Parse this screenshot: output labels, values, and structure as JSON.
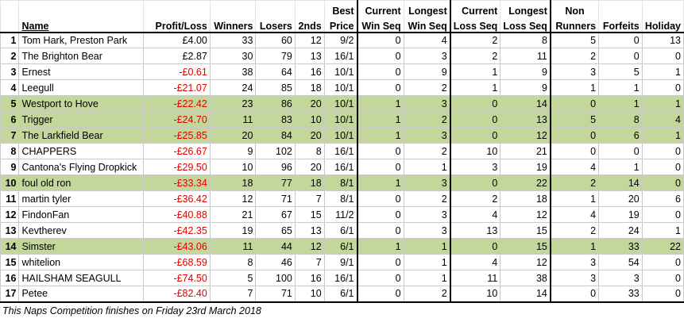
{
  "headers": {
    "name": "Name",
    "profit": "Profit/Loss",
    "winners": "Winners",
    "losers": "Losers",
    "seconds": "2nds",
    "best_price_1": "Best",
    "best_price_2": "Price",
    "cur_win_1": "Current",
    "cur_win_2": "Win Seq",
    "long_win_1": "Longest",
    "long_win_2": "Win Seq",
    "cur_loss_1": "Current",
    "cur_loss_2": "Loss Seq",
    "long_loss_1": "Longest",
    "long_loss_2": "Loss Seq",
    "non_runners_1": "Non",
    "non_runners_2": "Runners",
    "forfeits": "Forfeits",
    "holiday": "Holiday"
  },
  "rows": [
    {
      "rank": "1",
      "name": "Tom Hark, Preston Park",
      "pl": "£4.00",
      "w": "33",
      "l": "60",
      "s": "12",
      "bp": "9/2",
      "cw": "0",
      "lw": "4",
      "cl": "2",
      "ll": "8",
      "nr": "5",
      "f": "0",
      "h": "13"
    },
    {
      "rank": "2",
      "name": "The Brighton Bear",
      "pl": "£2.87",
      "w": "30",
      "l": "79",
      "s": "13",
      "bp": "16/1",
      "cw": "0",
      "lw": "3",
      "cl": "2",
      "ll": "11",
      "nr": "2",
      "f": "0",
      "h": "0"
    },
    {
      "rank": "3",
      "name": "Ernest",
      "pl": "-£0.61",
      "w": "38",
      "l": "64",
      "s": "16",
      "bp": "10/1",
      "cw": "0",
      "lw": "9",
      "cl": "1",
      "ll": "9",
      "nr": "3",
      "f": "5",
      "h": "1"
    },
    {
      "rank": "4",
      "name": "Leegull",
      "pl": "-£21.07",
      "w": "24",
      "l": "85",
      "s": "18",
      "bp": "10/1",
      "cw": "0",
      "lw": "2",
      "cl": "1",
      "ll": "9",
      "nr": "1",
      "f": "1",
      "h": "0"
    },
    {
      "rank": "5",
      "name": "Westport to Hove",
      "pl": "-£22.42",
      "w": "23",
      "l": "86",
      "s": "20",
      "bp": "10/1",
      "cw": "1",
      "lw": "3",
      "cl": "0",
      "ll": "14",
      "nr": "0",
      "f": "1",
      "h": "1"
    },
    {
      "rank": "6",
      "name": "Trigger",
      "pl": "-£24.70",
      "w": "11",
      "l": "83",
      "s": "10",
      "bp": "10/1",
      "cw": "1",
      "lw": "2",
      "cl": "0",
      "ll": "13",
      "nr": "5",
      "f": "8",
      "h": "4"
    },
    {
      "rank": "7",
      "name": "The Larkfield Bear",
      "pl": "-£25.85",
      "w": "20",
      "l": "84",
      "s": "20",
      "bp": "10/1",
      "cw": "1",
      "lw": "3",
      "cl": "0",
      "ll": "12",
      "nr": "0",
      "f": "6",
      "h": "1"
    },
    {
      "rank": "8",
      "name": "CHAPPERS",
      "pl": "-£26.67",
      "w": "9",
      "l": "102",
      "s": "8",
      "bp": "16/1",
      "cw": "0",
      "lw": "2",
      "cl": "10",
      "ll": "21",
      "nr": "0",
      "f": "0",
      "h": "0"
    },
    {
      "rank": "9",
      "name": "Cantona's Flying Dropkick",
      "pl": "-£29.50",
      "w": "10",
      "l": "96",
      "s": "20",
      "bp": "16/1",
      "cw": "0",
      "lw": "1",
      "cl": "3",
      "ll": "19",
      "nr": "4",
      "f": "1",
      "h": "0"
    },
    {
      "rank": "10",
      "name": "foul old ron",
      "pl": "-£33.34",
      "w": "18",
      "l": "77",
      "s": "18",
      "bp": "8/1",
      "cw": "1",
      "lw": "3",
      "cl": "0",
      "ll": "22",
      "nr": "2",
      "f": "14",
      "h": "0"
    },
    {
      "rank": "11",
      "name": "martin tyler",
      "pl": "-£36.42",
      "w": "12",
      "l": "71",
      "s": "7",
      "bp": "8/1",
      "cw": "0",
      "lw": "2",
      "cl": "2",
      "ll": "18",
      "nr": "1",
      "f": "20",
      "h": "6"
    },
    {
      "rank": "12",
      "name": "FindonFan",
      "pl": "-£40.88",
      "w": "21",
      "l": "67",
      "s": "15",
      "bp": "11/2",
      "cw": "0",
      "lw": "3",
      "cl": "4",
      "ll": "12",
      "nr": "4",
      "f": "19",
      "h": "0"
    },
    {
      "rank": "13",
      "name": "Kevtherev",
      "pl": "-£42.35",
      "w": "19",
      "l": "65",
      "s": "13",
      "bp": "6/1",
      "cw": "0",
      "lw": "3",
      "cl": "13",
      "ll": "15",
      "nr": "2",
      "f": "24",
      "h": "1"
    },
    {
      "rank": "14",
      "name": "Simster",
      "pl": "-£43.06",
      "w": "11",
      "l": "44",
      "s": "12",
      "bp": "6/1",
      "cw": "1",
      "lw": "1",
      "cl": "0",
      "ll": "15",
      "nr": "1",
      "f": "33",
      "h": "22"
    },
    {
      "rank": "15",
      "name": "whitelion",
      "pl": "-£68.59",
      "w": "8",
      "l": "46",
      "s": "7",
      "bp": "9/1",
      "cw": "0",
      "lw": "1",
      "cl": "4",
      "ll": "12",
      "nr": "3",
      "f": "54",
      "h": "0"
    },
    {
      "rank": "16",
      "name": "HAILSHAM SEAGULL",
      "pl": "-£74.50",
      "w": "5",
      "l": "100",
      "s": "16",
      "bp": "16/1",
      "cw": "0",
      "lw": "1",
      "cl": "11",
      "ll": "38",
      "nr": "3",
      "f": "3",
      "h": "0"
    },
    {
      "rank": "17",
      "name": "Petee",
      "pl": "-£82.40",
      "w": "7",
      "l": "71",
      "s": "10",
      "bp": "6/1",
      "cw": "0",
      "lw": "2",
      "cl": "10",
      "ll": "14",
      "nr": "0",
      "f": "33",
      "h": "0"
    }
  ],
  "highlight_color": "#c4d79b",
  "negative_color": "#e00000",
  "footer": "This Naps Competition finishes on Friday 23rd March 2018"
}
